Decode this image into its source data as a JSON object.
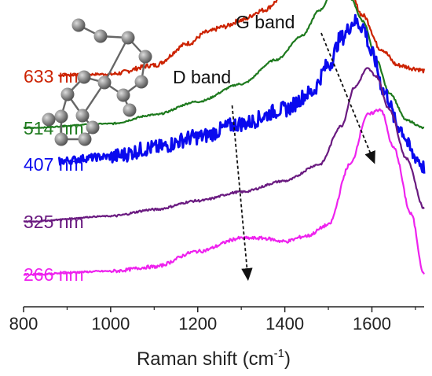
{
  "chart_data": {
    "type": "line",
    "title": "",
    "xlabel": "Raman shift (cm",
    "xlabel_sup": "-1",
    "xlabel_suffix": ")",
    "ylabel": "",
    "xlim": [
      800,
      1720
    ],
    "xticks": [
      "800",
      "1000",
      "1200",
      "1400",
      "1600"
    ],
    "grid": false,
    "legend": "inline labels on left",
    "annotations": [
      {
        "text": "G band",
        "from_x": 1480,
        "to_x": 1620
      },
      {
        "text": "D band",
        "from_x": 1270,
        "to_x": 1320
      }
    ],
    "molecule_icon": "graphene-fragment-ball-stick",
    "series": [
      {
        "name": "633 nm",
        "color": "#cc2200",
        "noise": 0.02,
        "x": [
          800,
          1000,
          1100,
          1180,
          1220,
          1260,
          1300,
          1350,
          1400,
          1440,
          1470,
          1490,
          1510,
          1540,
          1580,
          1620,
          1660,
          1700,
          1720
        ],
        "y": [
          0.85,
          0.87,
          0.95,
          1.15,
          1.25,
          1.3,
          1.36,
          1.45,
          1.58,
          1.72,
          1.85,
          1.9,
          1.86,
          1.7,
          1.4,
          1.1,
          0.95,
          0.92,
          0.9
        ]
      },
      {
        "name": "514 nm",
        "color": "#1e7a1e",
        "noise": 0.008,
        "x": [
          800,
          1000,
          1100,
          1200,
          1300,
          1380,
          1440,
          1480,
          1510,
          1530,
          1550,
          1580,
          1610,
          1640,
          1680,
          1720
        ],
        "y": [
          0.38,
          0.42,
          0.5,
          0.62,
          0.78,
          1.0,
          1.22,
          1.45,
          1.6,
          1.62,
          1.56,
          1.35,
          1.0,
          0.7,
          0.45,
          0.38
        ]
      },
      {
        "name": "407 nm",
        "color": "#0a0aee",
        "noise": 0.07,
        "x": [
          800,
          1000,
          1100,
          1200,
          1300,
          1400,
          1460,
          1500,
          1530,
          1560,
          1580,
          1600,
          1630,
          1660,
          1700,
          1720
        ],
        "y": [
          0.05,
          0.12,
          0.2,
          0.3,
          0.42,
          0.55,
          0.7,
          0.95,
          1.2,
          1.35,
          1.3,
          1.05,
          0.7,
          0.4,
          0.12,
          0.02
        ]
      },
      {
        "name": "325 nm",
        "color": "#6a1a80",
        "noise": 0.01,
        "x": [
          800,
          1000,
          1100,
          1200,
          1300,
          1400,
          1480,
          1530,
          1560,
          1590,
          1610,
          1640,
          1680,
          1720
        ],
        "y": [
          -0.47,
          -0.42,
          -0.36,
          -0.28,
          -0.2,
          -0.1,
          0.05,
          0.4,
          0.75,
          0.92,
          0.85,
          0.55,
          0.1,
          -0.35
        ]
      },
      {
        "name": "266 nm",
        "color": "#ee22ee",
        "noise": 0.015,
        "x": [
          800,
          1000,
          1100,
          1200,
          1300,
          1350,
          1400,
          1450,
          1500,
          1550,
          1590,
          1620,
          1650,
          1690,
          1720
        ],
        "y": [
          -0.95,
          -0.92,
          -0.88,
          -0.74,
          -0.62,
          -0.62,
          -0.65,
          -0.6,
          -0.5,
          0.05,
          0.5,
          0.55,
          0.2,
          -0.4,
          -0.95
        ]
      }
    ]
  }
}
